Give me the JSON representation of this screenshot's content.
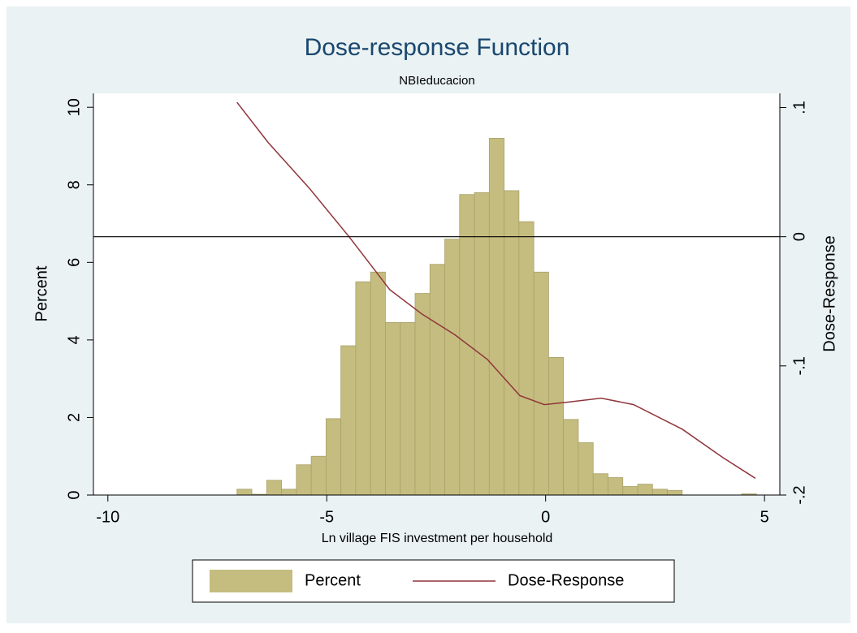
{
  "chart_data": {
    "type": "histogram",
    "title": "Dose-response Function",
    "subtitle": "NBIeducacion",
    "xlabel": "Ln village FIS investment per household",
    "ylabel": "Percent",
    "y2label": "Dose-Response",
    "xlim": [
      -10.33,
      5.35
    ],
    "xticks": [
      -10,
      -5,
      0,
      5
    ],
    "ylim": [
      0,
      10.36
    ],
    "yticks": [
      0,
      2,
      4,
      6,
      8,
      10
    ],
    "y2lim": [
      -0.2,
      0.111
    ],
    "y2ticks": [
      {
        "value": -0.2,
        "label": "-.2"
      },
      {
        "value": -0.1,
        "label": "-.1"
      },
      0,
      {
        "value": 0.1,
        "label": ".1"
      }
    ],
    "y2line": 0,
    "series": [
      {
        "name": "Percent",
        "type": "histogram",
        "color": "#c5bd7f",
        "bins": [
          -7.05,
          -6.711,
          -6.372,
          -6.033,
          -5.694,
          -5.355,
          -5.016,
          -4.677,
          -4.338,
          -3.999,
          -3.66,
          -3.321,
          -2.982,
          -2.643,
          -2.304,
          -1.965,
          -1.626,
          -1.287,
          -0.948,
          -0.609,
          -0.27,
          0.069,
          0.408,
          0.747,
          1.086,
          1.425,
          1.764,
          2.103,
          2.442,
          2.781,
          3.12,
          3.459,
          3.798,
          4.137,
          4.476,
          4.815
        ],
        "values": [
          0.15,
          0.02,
          0.38,
          0.15,
          0.78,
          1.0,
          1.97,
          3.85,
          5.5,
          5.75,
          4.45,
          4.45,
          5.2,
          5.95,
          6.6,
          7.75,
          7.8,
          9.2,
          7.85,
          7.05,
          5.75,
          3.55,
          1.95,
          1.35,
          0.55,
          0.45,
          0.22,
          0.28,
          0.15,
          0.12,
          0,
          0,
          0,
          0,
          0.03
        ]
      },
      {
        "name": "Dose-Response",
        "type": "line",
        "axis": "y2",
        "color": "#90353b",
        "x": [
          -7.05,
          -6.34,
          -5.41,
          -4.49,
          -3.56,
          -2.82,
          -2.07,
          -1.33,
          -0.59,
          -0.03,
          0.53,
          1.27,
          2.01,
          3.12,
          4.05,
          4.79
        ],
        "values": [
          0.104,
          0.073,
          0.038,
          0,
          -0.041,
          -0.06,
          -0.076,
          -0.095,
          -0.123,
          -0.13,
          -0.128,
          -0.125,
          -0.13,
          -0.149,
          -0.171,
          -0.187
        ]
      }
    ]
  }
}
